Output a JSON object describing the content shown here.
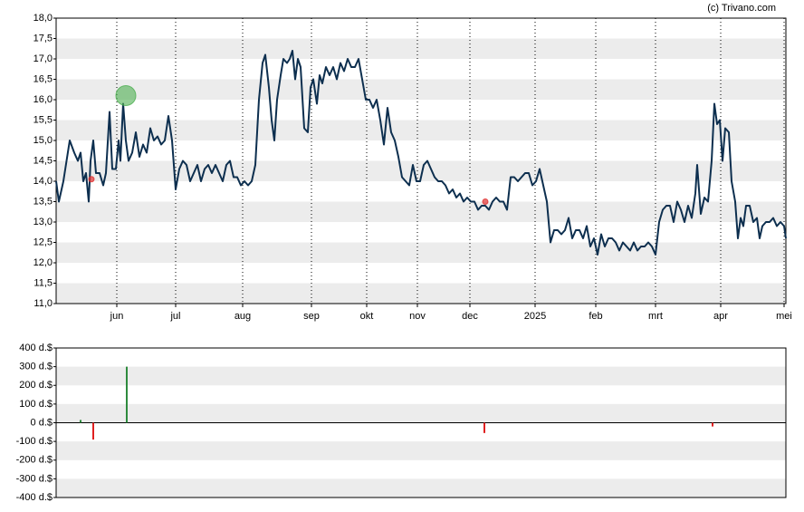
{
  "credit": "(c) Trivano.com",
  "chart_data": [
    {
      "type": "line",
      "color": "#0d2f4f",
      "xlim": [
        0,
        806
      ],
      "ylim": [
        11,
        18
      ],
      "grid": true,
      "xticks": [
        {
          "value": 67,
          "label": "jun"
        },
        {
          "value": 132,
          "label": "jul"
        },
        {
          "value": 206,
          "label": "aug"
        },
        {
          "value": 282,
          "label": "sep"
        },
        {
          "value": 343,
          "label": "okt"
        },
        {
          "value": 399,
          "label": "nov"
        },
        {
          "value": 457,
          "label": "dec"
        },
        {
          "value": 529,
          "label": "2025"
        },
        {
          "value": 596,
          "label": "feb"
        },
        {
          "value": 662,
          "label": "mrt"
        },
        {
          "value": 734,
          "label": "apr"
        },
        {
          "value": 804,
          "label": "mei"
        }
      ],
      "yticks": [
        {
          "value": 11,
          "label": "11,0"
        },
        {
          "value": 11.5,
          "label": "11,5"
        },
        {
          "value": 12,
          "label": "12,0"
        },
        {
          "value": 12.5,
          "label": "12,5"
        },
        {
          "value": 13,
          "label": "13,0"
        },
        {
          "value": 13.5,
          "label": "13,5"
        },
        {
          "value": 14,
          "label": "14,0"
        },
        {
          "value": 14.5,
          "label": "14,5"
        },
        {
          "value": 15,
          "label": "15,0"
        },
        {
          "value": 15.5,
          "label": "15,5"
        },
        {
          "value": 16,
          "label": "16,0"
        },
        {
          "value": 16.5,
          "label": "16,5"
        },
        {
          "value": 17,
          "label": "17,0"
        },
        {
          "value": 17.5,
          "label": "17,5"
        },
        {
          "value": 18,
          "label": "18,0"
        }
      ],
      "x": [
        0,
        3,
        8,
        15,
        20,
        24,
        27,
        30,
        33,
        36,
        38,
        41,
        44,
        48,
        52,
        55,
        59,
        62,
        66,
        69,
        71,
        74,
        77,
        80,
        84,
        88,
        92,
        96,
        100,
        104,
        108,
        112,
        116,
        120,
        124,
        128,
        132,
        136,
        140,
        144,
        148,
        152,
        156,
        160,
        164,
        168,
        172,
        176,
        180,
        184,
        188,
        192,
        196,
        200,
        204,
        208,
        212,
        216,
        220,
        224,
        228,
        231,
        235,
        238,
        241,
        244,
        248,
        251,
        255,
        258,
        261,
        264,
        267,
        270,
        274,
        278,
        281,
        284,
        288,
        291,
        294,
        298,
        302,
        306,
        310,
        314,
        318,
        322,
        326,
        330,
        334,
        338,
        342,
        346,
        350,
        354,
        358,
        362,
        366,
        370,
        374,
        378,
        382,
        386,
        390,
        394,
        398,
        402,
        406,
        410,
        414,
        418,
        422,
        426,
        430,
        434,
        438,
        442,
        446,
        450,
        454,
        458,
        462,
        466,
        470,
        474,
        478,
        482,
        486,
        490,
        494,
        498,
        502,
        506,
        510,
        514,
        518,
        522,
        526,
        530,
        534,
        538,
        542,
        546,
        550,
        554,
        558,
        562,
        566,
        570,
        574,
        578,
        582,
        586,
        590,
        594,
        598,
        602,
        606,
        610,
        614,
        618,
        622,
        626,
        630,
        634,
        638,
        642,
        646,
        650,
        654,
        658,
        662,
        666,
        670,
        674,
        678,
        682,
        686,
        690,
        694,
        698,
        702,
        706,
        708,
        712,
        716,
        720,
        724,
        727,
        730,
        733,
        736,
        739,
        743,
        746,
        750,
        753,
        756,
        759,
        762,
        766,
        770,
        774,
        777,
        780,
        784,
        788,
        792,
        796,
        800,
        804,
        806
      ],
      "values": [
        14.0,
        13.5,
        14.0,
        15.0,
        14.7,
        14.5,
        14.7,
        14.0,
        14.2,
        13.5,
        14.5,
        15.0,
        14.2,
        14.2,
        13.9,
        14.2,
        15.7,
        14.3,
        14.3,
        15.0,
        14.5,
        15.9,
        15.0,
        14.5,
        14.7,
        15.2,
        14.6,
        14.9,
        14.7,
        15.3,
        15.0,
        15.1,
        14.9,
        15.0,
        15.6,
        15.0,
        13.8,
        14.3,
        14.5,
        14.4,
        14.0,
        14.2,
        14.4,
        14.0,
        14.3,
        14.4,
        14.2,
        14.4,
        14.2,
        14.0,
        14.4,
        14.5,
        14.1,
        14.1,
        13.9,
        14.0,
        13.9,
        14.0,
        14.4,
        16.0,
        16.9,
        17.1,
        16.3,
        15.5,
        15.0,
        16.0,
        16.6,
        17.0,
        16.9,
        17.0,
        17.2,
        16.5,
        17.0,
        16.8,
        15.3,
        15.2,
        16.3,
        16.5,
        15.9,
        16.6,
        16.4,
        16.8,
        16.6,
        16.8,
        16.5,
        16.9,
        16.7,
        17.0,
        16.8,
        16.8,
        17.0,
        16.5,
        16.0,
        16.0,
        15.8,
        16.0,
        15.5,
        14.9,
        15.8,
        15.2,
        15.0,
        14.6,
        14.1,
        14.0,
        13.9,
        14.4,
        14.0,
        14.0,
        14.4,
        14.5,
        14.3,
        14.1,
        14.0,
        14.0,
        13.9,
        13.7,
        13.8,
        13.6,
        13.7,
        13.5,
        13.6,
        13.5,
        13.5,
        13.3,
        13.4,
        13.4,
        13.3,
        13.5,
        13.6,
        13.5,
        13.5,
        13.3,
        14.1,
        14.1,
        14.0,
        14.1,
        14.2,
        14.2,
        13.9,
        14.0,
        14.3,
        13.9,
        13.5,
        12.5,
        12.8,
        12.8,
        12.7,
        12.8,
        13.1,
        12.6,
        12.8,
        12.8,
        12.6,
        12.9,
        12.4,
        12.6,
        12.2,
        12.7,
        12.4,
        12.6,
        12.6,
        12.5,
        12.3,
        12.5,
        12.4,
        12.3,
        12.5,
        12.3,
        12.4,
        12.4,
        12.5,
        12.4,
        12.2,
        13.0,
        13.3,
        13.4,
        13.4,
        13.0,
        13.5,
        13.3,
        13.0,
        13.4,
        13.1,
        13.7,
        14.4,
        13.2,
        13.6,
        13.5,
        14.5,
        15.9,
        15.4,
        15.5,
        14.5,
        15.3,
        15.2,
        14.0,
        13.5,
        12.6,
        13.1,
        12.9,
        13.4,
        13.4,
        13.0,
        13.1,
        12.6,
        12.9,
        13.0,
        13.0,
        13.1,
        12.9,
        13.0,
        12.9,
        12.6
      ],
      "markers": {
        "x": [
          39,
          77,
          474
        ],
        "values": [
          14.05,
          16.1,
          13.5
        ],
        "colors": [
          "#e03030",
          "#4caf50",
          "#e03030"
        ]
      }
    },
    {
      "type": "bar",
      "xlim": [
        0,
        806
      ],
      "ylim": [
        -400,
        400
      ],
      "grid": true,
      "yticks": [
        {
          "value": -400,
          "label": "-400 d.$"
        },
        {
          "value": -300,
          "label": "-300 d.$"
        },
        {
          "value": -200,
          "label": "-200 d.$"
        },
        {
          "value": -100,
          "label": "-100 d.$"
        },
        {
          "value": 0,
          "label": "0 d.$"
        },
        {
          "value": 100,
          "label": "100 d.$"
        },
        {
          "value": 200,
          "label": "200 d.$"
        },
        {
          "value": 300,
          "label": "300 d.$"
        },
        {
          "value": 400,
          "label": "400 d.$"
        }
      ],
      "x": [
        27,
        41,
        78,
        473,
        725
      ],
      "values": [
        15,
        -90,
        300,
        -55,
        -20
      ],
      "colors": [
        "#2e8b3e",
        "#e02020",
        "#2e8b3e",
        "#e02020",
        "#e02020"
      ]
    }
  ]
}
